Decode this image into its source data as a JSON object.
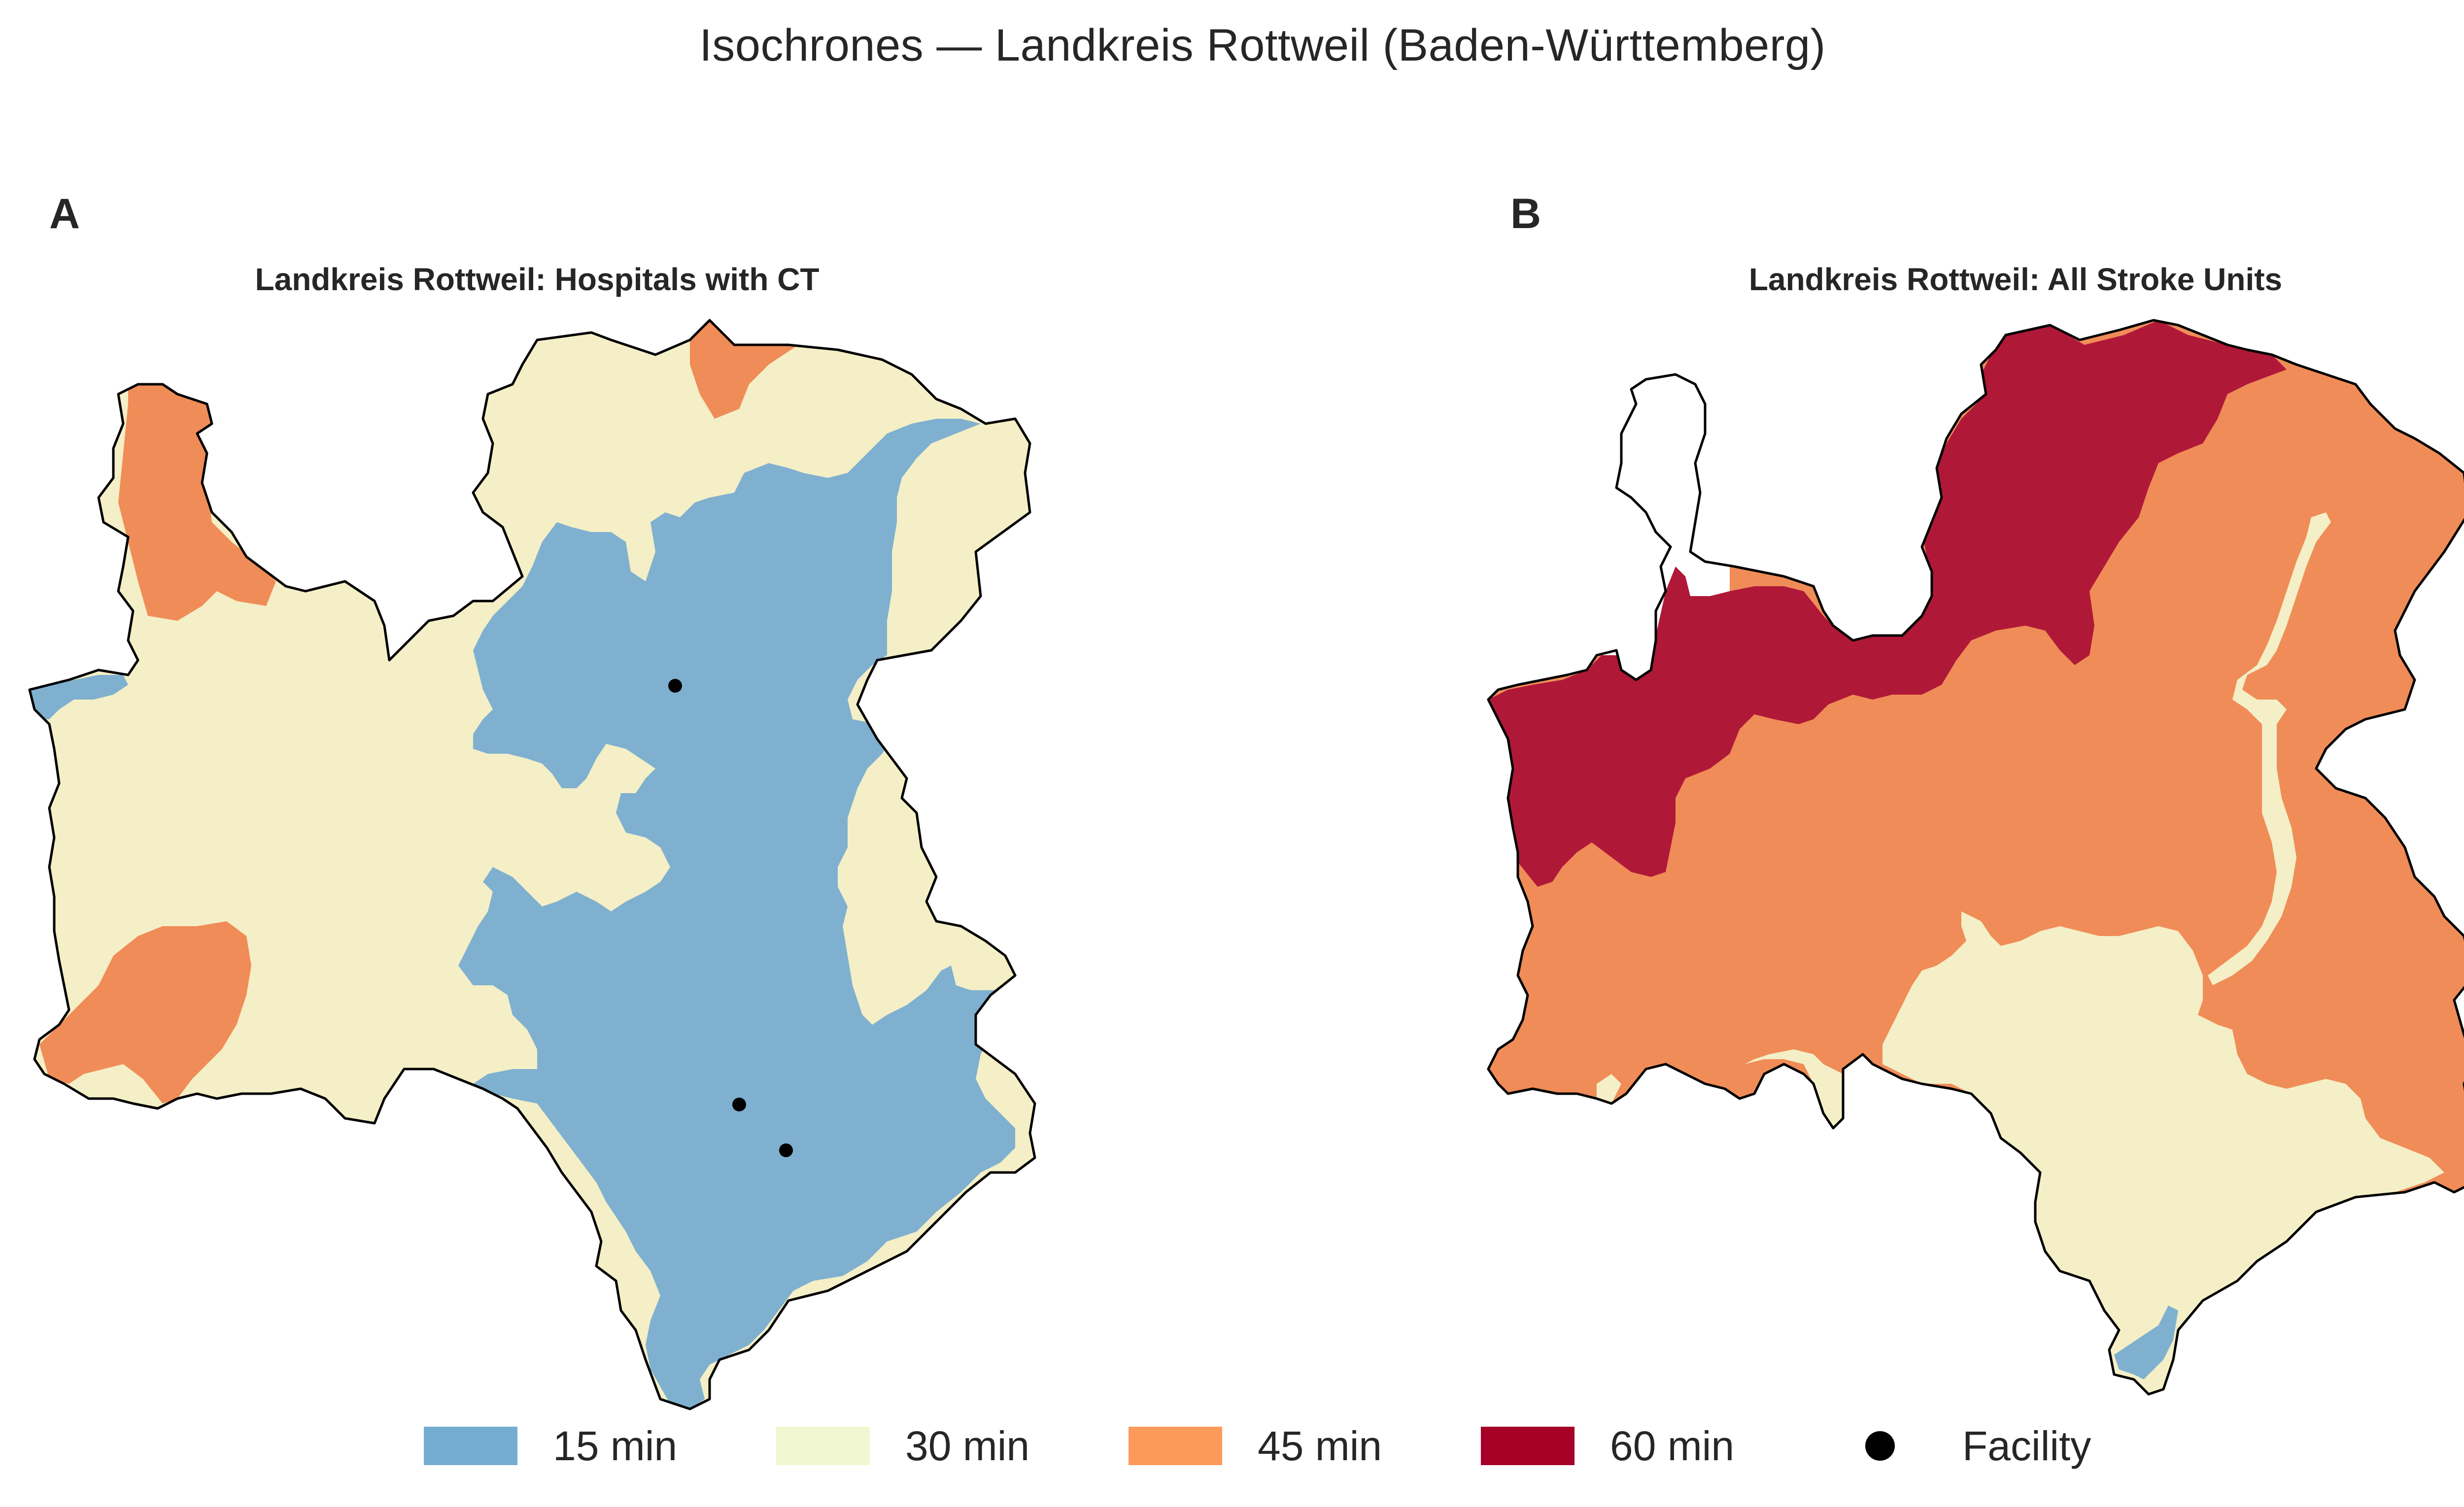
{
  "suptitle": "Isochrones — Landkreis Rottweil (Baden-Württemberg)",
  "panels": [
    {
      "letter": "A",
      "title": "Landkreis Rottweil: Hospitals with CT",
      "facilities_shown": 3
    },
    {
      "letter": "B",
      "title": "Landkreis Rottweil: All Stroke Units",
      "facilities_shown": 0
    }
  ],
  "colors": {
    "min15": "#7fb0d0",
    "min30": "#f4efc6",
    "min45": "#f08c58",
    "min60": "#b01838",
    "legend15": "#74add1",
    "legend30": "#f1f7d0",
    "legend45": "#fb9a5a",
    "legend60": "#a50026",
    "outline": "#000000",
    "unreached": "#ffffff"
  },
  "legend": [
    {
      "label": "15 min",
      "color_key": "legend15"
    },
    {
      "label": "30 min",
      "color_key": "legend30"
    },
    {
      "label": "45 min",
      "color_key": "legend45"
    },
    {
      "label": "60 min",
      "color_key": "legend60"
    },
    {
      "label": "Facility",
      "marker": "dot"
    }
  ]
}
